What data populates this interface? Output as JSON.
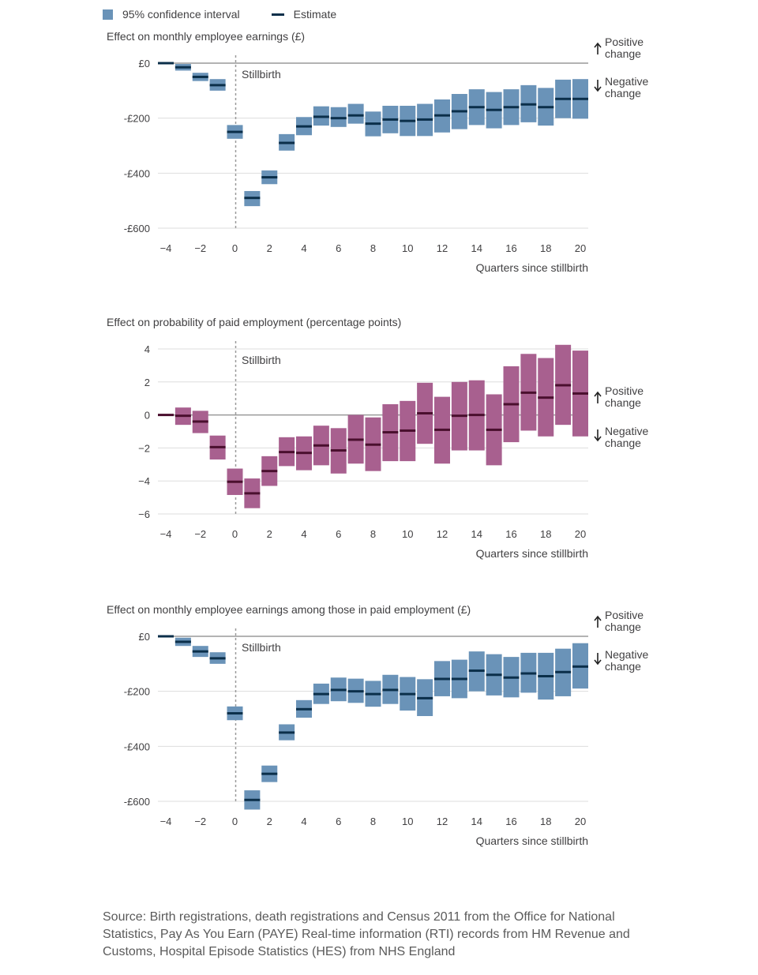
{
  "legend": {
    "ci_label": "95% confidence interval",
    "estimate_label": "Estimate",
    "ci_color": "#6a93b8",
    "estimate_color": "#0b2f4a"
  },
  "annotations": {
    "event_label": "Stillbirth",
    "positive_line1": "Positive",
    "positive_line2": "change",
    "negative_line1": "Negative",
    "negative_line2": "change"
  },
  "source_text": "Source: Birth registrations, death registrations and Census 2011 from the Office for National Statistics, Pay As You Earn (PAYE) Real-time information (RTI) records from HM Revenue and Customs, Hospital Episode Statistics (HES) from NHS England",
  "chart_data": [
    {
      "type": "bar",
      "title": "Effect on monthly employee earnings (£)",
      "xlabel": "Quarters since stillbirth",
      "ylabel": "",
      "xlim": [
        -4,
        20
      ],
      "ylim": [
        -600,
        0
      ],
      "yticks": [
        0,
        -200,
        -400,
        -600
      ],
      "ytick_labels": [
        "£0",
        "-£200",
        "-£400",
        "-£600"
      ],
      "xticks": [
        -4,
        -2,
        0,
        2,
        4,
        6,
        8,
        10,
        12,
        14,
        16,
        18,
        20
      ],
      "xtick_labels": [
        "−4",
        "−2",
        "0",
        "2",
        "4",
        "6",
        "8",
        "10",
        "12",
        "14",
        "16",
        "18",
        "20"
      ],
      "ci_color": "#6a93b8",
      "estimate_color": "#0b2f4a",
      "direction_note": "top",
      "x": [
        -4,
        -3,
        -2,
        -1,
        0,
        1,
        2,
        3,
        4,
        5,
        6,
        7,
        8,
        9,
        10,
        11,
        12,
        13,
        14,
        15,
        16,
        17,
        18,
        19,
        20
      ],
      "estimate": [
        0,
        -15,
        -50,
        -80,
        -250,
        -490,
        -415,
        -290,
        -230,
        -195,
        -200,
        -190,
        -220,
        -205,
        -210,
        -205,
        -190,
        -175,
        -160,
        -170,
        -160,
        -150,
        -160,
        -130,
        -130
      ],
      "lower": [
        0,
        -27,
        -65,
        -100,
        -275,
        -520,
        -440,
        -318,
        -262,
        -227,
        -232,
        -220,
        -266,
        -255,
        -265,
        -265,
        -252,
        -240,
        -225,
        -237,
        -225,
        -215,
        -227,
        -200,
        -202
      ],
      "upper": [
        0,
        -3,
        -35,
        -58,
        -225,
        -465,
        -390,
        -258,
        -196,
        -157,
        -160,
        -148,
        -176,
        -155,
        -155,
        -148,
        -132,
        -112,
        -95,
        -105,
        -95,
        -80,
        -90,
        -60,
        -58
      ]
    },
    {
      "type": "bar",
      "title": "Effect on probability of paid employment (percentage points)",
      "xlabel": "Quarters since stillbirth",
      "ylabel": "",
      "xlim": [
        -4,
        20
      ],
      "ylim": [
        -6,
        4
      ],
      "yticks": [
        4,
        2,
        0,
        -2,
        -4,
        -6
      ],
      "ytick_labels": [
        "4",
        "2",
        "0",
        "−2",
        "−4",
        "−6"
      ],
      "xticks": [
        -4,
        -2,
        0,
        2,
        4,
        6,
        8,
        10,
        12,
        14,
        16,
        18,
        20
      ],
      "xtick_labels": [
        "−4",
        "−2",
        "0",
        "2",
        "4",
        "6",
        "8",
        "10",
        "12",
        "14",
        "16",
        "18",
        "20"
      ],
      "ci_color": "#a8608f",
      "estimate_color": "#4a0f2e",
      "direction_note": "middle",
      "x": [
        -4,
        -3,
        -2,
        -1,
        0,
        1,
        2,
        3,
        4,
        5,
        6,
        7,
        8,
        9,
        10,
        11,
        12,
        13,
        14,
        15,
        16,
        17,
        18,
        19,
        20
      ],
      "estimate": [
        0,
        -0.05,
        -0.4,
        -1.95,
        -4.05,
        -4.75,
        -3.4,
        -2.25,
        -2.3,
        -1.85,
        -2.15,
        -1.5,
        -1.8,
        -1.05,
        -0.95,
        0.1,
        -0.9,
        -0.05,
        0.0,
        -0.9,
        0.65,
        1.35,
        1.05,
        1.8,
        1.3
      ],
      "lower": [
        0,
        -0.6,
        -1.1,
        -2.7,
        -4.85,
        -5.65,
        -4.3,
        -3.1,
        -3.35,
        -3.05,
        -3.55,
        -2.95,
        -3.4,
        -2.8,
        -2.8,
        -1.75,
        -2.95,
        -2.15,
        -2.15,
        -3.05,
        -1.65,
        -0.95,
        -1.3,
        -0.6,
        -1.3
      ],
      "upper": [
        0,
        0.45,
        0.25,
        -1.25,
        -3.25,
        -3.85,
        -2.5,
        -1.35,
        -1.3,
        -0.65,
        -0.8,
        0.0,
        -0.15,
        0.65,
        0.85,
        1.95,
        1.1,
        2.0,
        2.1,
        1.25,
        2.95,
        3.7,
        3.45,
        4.25,
        3.9
      ]
    },
    {
      "type": "bar",
      "title": "Effect on monthly employee earnings among those in paid employment (£)",
      "xlabel": "Quarters since stillbirth",
      "ylabel": "",
      "xlim": [
        -4,
        20
      ],
      "ylim": [
        -600,
        0
      ],
      "yticks": [
        0,
        -200,
        -400,
        -600
      ],
      "ytick_labels": [
        "£0",
        "-£200",
        "-£400",
        "-£600"
      ],
      "xticks": [
        -4,
        -2,
        0,
        2,
        4,
        6,
        8,
        10,
        12,
        14,
        16,
        18,
        20
      ],
      "xtick_labels": [
        "−4",
        "−2",
        "0",
        "2",
        "4",
        "6",
        "8",
        "10",
        "12",
        "14",
        "16",
        "18",
        "20"
      ],
      "ci_color": "#6a93b8",
      "estimate_color": "#0b2f4a",
      "direction_note": "top",
      "x": [
        -4,
        -3,
        -2,
        -1,
        0,
        1,
        2,
        3,
        4,
        5,
        6,
        7,
        8,
        9,
        10,
        11,
        12,
        13,
        14,
        15,
        16,
        17,
        18,
        19,
        20
      ],
      "estimate": [
        0,
        -20,
        -55,
        -80,
        -280,
        -595,
        -500,
        -350,
        -265,
        -210,
        -195,
        -200,
        -210,
        -195,
        -210,
        -225,
        -155,
        -155,
        -125,
        -140,
        -150,
        -135,
        -145,
        -130,
        -110
      ],
      "lower": [
        0,
        -35,
        -75,
        -100,
        -305,
        -630,
        -530,
        -378,
        -296,
        -246,
        -236,
        -242,
        -256,
        -246,
        -270,
        -290,
        -218,
        -225,
        -200,
        -215,
        -222,
        -205,
        -230,
        -218,
        -190
      ],
      "upper": [
        0,
        -5,
        -35,
        -58,
        -255,
        -560,
        -470,
        -320,
        -232,
        -172,
        -150,
        -154,
        -162,
        -140,
        -148,
        -156,
        -90,
        -85,
        -55,
        -65,
        -75,
        -60,
        -60,
        -45,
        -25
      ]
    }
  ]
}
